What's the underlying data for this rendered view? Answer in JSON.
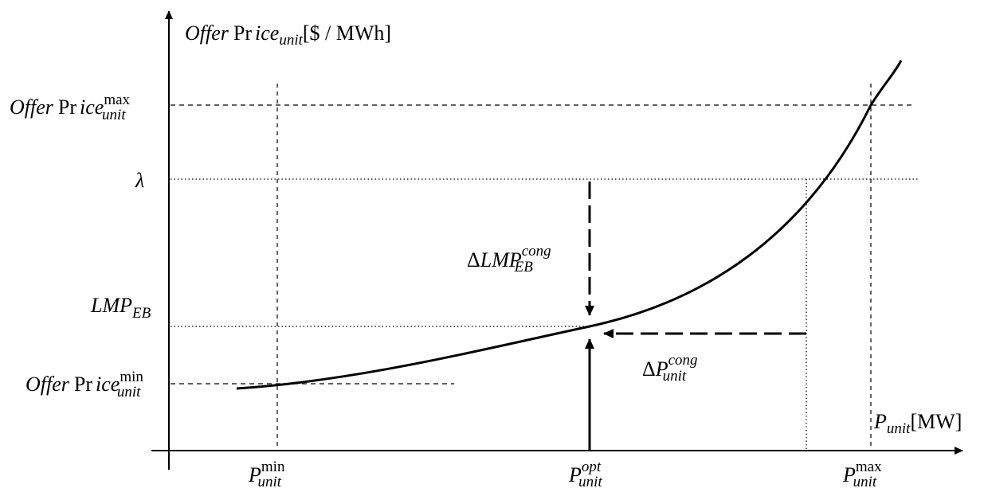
{
  "axes": {
    "y_label": {
      "main": "Offer",
      "pr": "Pr",
      "ice": "ice",
      "sub": "unit",
      "unit": "[$ / MWh]"
    },
    "x_label": {
      "main": "P",
      "sub": "unit",
      "unit": "[MW]"
    }
  },
  "y_ticks": {
    "offer_max": {
      "main": "Offer",
      "pr": "Pr",
      "ice": "ice",
      "sub": "unit",
      "sup": "max"
    },
    "lambda": "λ",
    "lmp_eb": {
      "main": "LMP",
      "sub": "EB"
    },
    "offer_min": {
      "main": "Offer",
      "pr": "Pr",
      "ice": "ice",
      "sub": "unit",
      "sup": "min"
    }
  },
  "x_ticks": {
    "p_min": {
      "main": "P",
      "sub": "unit",
      "sup": "min"
    },
    "p_opt": {
      "main": "P",
      "sub": "unit",
      "sup": "opt"
    },
    "p_max": {
      "main": "P",
      "sub": "unit",
      "sup": "max"
    }
  },
  "annotations": {
    "delta_lmp": {
      "delta": "Δ",
      "main": "LMP",
      "sub": "EB",
      "sup": "cong"
    },
    "delta_p": {
      "delta": "Δ",
      "main": "P",
      "sub": "unit",
      "sup": "cong"
    }
  }
}
